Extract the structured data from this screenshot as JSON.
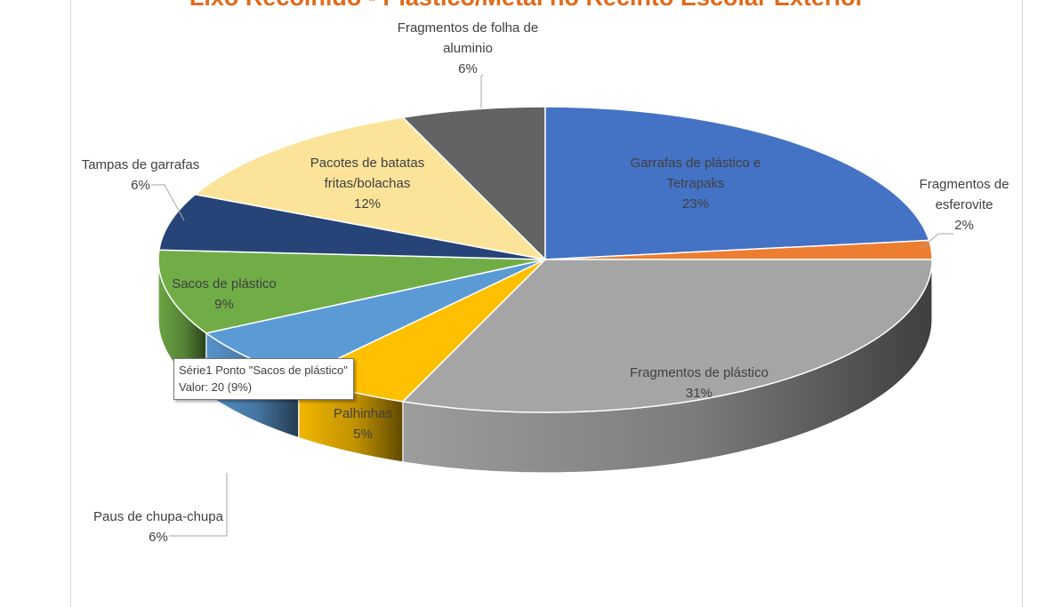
{
  "chart_data": {
    "type": "pie",
    "style": "3d",
    "title": "Lixo Recolhido - Plástico/Metal no Recinto Escolar Exterior",
    "series": [
      {
        "name": "Série1",
        "slices": [
          {
            "label": "Garrafas de plástico e Tetrapaks",
            "value": 23,
            "percent": "23%",
            "color": "#4472c4"
          },
          {
            "label": "Fragmentos de esferovite",
            "value": 2,
            "percent": "2%",
            "color": "#ed7d31"
          },
          {
            "label": "Fragmentos de plástico",
            "value": 31,
            "percent": "31%",
            "color": "#a5a5a5"
          },
          {
            "label": "Palhinhas",
            "value": 5,
            "percent": "5%",
            "color": "#ffc000"
          },
          {
            "label": "Paus de chupa-chupa",
            "value": 6,
            "percent": "6%",
            "color": "#5b9bd5"
          },
          {
            "label": "Sacos de plástico",
            "value": 9,
            "percent": "9%",
            "color": "#70ad47"
          },
          {
            "label": "Tampas de garrafas",
            "value": 6,
            "percent": "6%",
            "color": "#264478"
          },
          {
            "label": "Pacotes de batatas fritas/bolachas",
            "value": 12,
            "percent": "12%",
            "color": "#fbe399"
          },
          {
            "label": "Fragmentos de folha de aluminio",
            "value": 6,
            "percent": "6%",
            "color": "#636363"
          }
        ]
      }
    ],
    "legend": "none"
  },
  "tooltip": {
    "line1": "Série1 Ponto \"Sacos de plástico\"",
    "line2": "Valor: 20 (9%)"
  }
}
